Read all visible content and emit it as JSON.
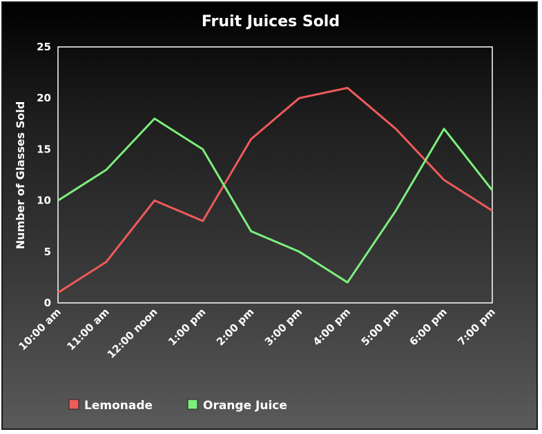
{
  "chart_data": {
    "type": "line",
    "title": "Fruit Juices Sold",
    "xlabel": "",
    "ylabel": "Number of Glasses Sold",
    "categories": [
      "10:00 am",
      "11:00 am",
      "12:00 noon",
      "1:00 pm",
      "2:00 pm",
      "3:00 pm",
      "4:00 pm",
      "5:00 pm",
      "6:00 pm",
      "7:00 pm"
    ],
    "ylim": [
      0,
      25
    ],
    "yticks": [
      0,
      5,
      10,
      15,
      20,
      25
    ],
    "grid": false,
    "legend_position": "bottom-left",
    "series": [
      {
        "name": "Lemonade",
        "color": "#ef5a5a",
        "values": [
          1,
          4,
          10,
          8,
          16,
          20,
          21,
          17,
          12,
          9
        ]
      },
      {
        "name": "Orange Juice",
        "color": "#7cf07c",
        "values": [
          10,
          13,
          18,
          15,
          7,
          5,
          2,
          9,
          17,
          11
        ]
      }
    ]
  }
}
